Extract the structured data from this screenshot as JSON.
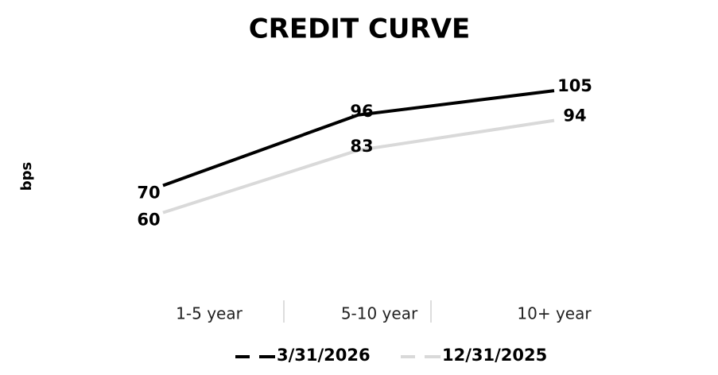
{
  "chart_data": {
    "type": "line",
    "title": "CREDIT CURVE",
    "y_label": "bps",
    "categories": [
      "1-5 year",
      "5-10 year",
      "10+ year"
    ],
    "series": [
      {
        "name": "3/31/2026",
        "color": "#000000",
        "values": [
          70,
          96,
          105
        ]
      },
      {
        "name": "12/31/2025",
        "color": "#d9d9d9",
        "values": [
          60,
          83,
          94
        ]
      }
    ],
    "ylim": [
      30,
      115
    ]
  }
}
